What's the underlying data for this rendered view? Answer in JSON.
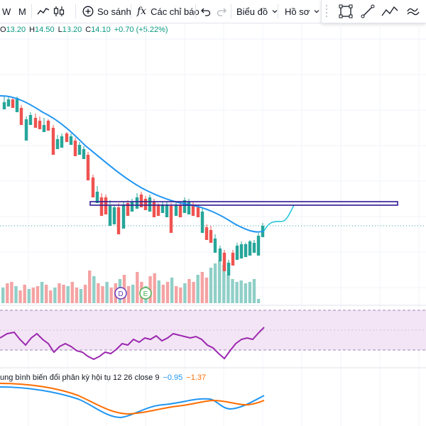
{
  "toolbar": {
    "interval_w": "W",
    "interval_m": "M",
    "compare_label": "So sánh",
    "indicators_label": "Các chỉ báo",
    "chart_type_label": "Biểu đồ",
    "profile_label": "Hồ sơ",
    "fx_symbol": "fx"
  },
  "ohlc": {
    "open_key": "O",
    "open": "13.20",
    "high_key": "H",
    "high": "14.50",
    "low_key": "L",
    "low": "13.20",
    "close_key": "C",
    "close": "14.10",
    "change": "+0.70 (+5.22%)"
  },
  "markers": {
    "dividend": "D",
    "earnings": "E"
  },
  "macd_legend": {
    "label": "ung bình biến đổi phân kỳ hội tụ 12 26 close 9",
    "macd_value": "−0.95",
    "signal_value": "−1.37"
  },
  "colors": {
    "up": "#26a69a",
    "down": "#ef5350",
    "vol_up": "#8fcfc7",
    "vol_down": "#f5a3a3",
    "ma_line": "#2196f3",
    "rsi_line": "#9c27b0",
    "rsi_band": "#f3e5f5",
    "macd_line": "#2196f3",
    "signal_line": "#ff6d00",
    "rect_border": "#311b92"
  },
  "icons": [
    "add-circle-icon",
    "fx-icon",
    "undo-icon",
    "redo-icon",
    "chevron-down-icon",
    "line-chart-icon",
    "candles-icon",
    "rectangle-tool-icon",
    "trend-line-icon",
    "path-tool-icon",
    "brush-icon"
  ]
}
